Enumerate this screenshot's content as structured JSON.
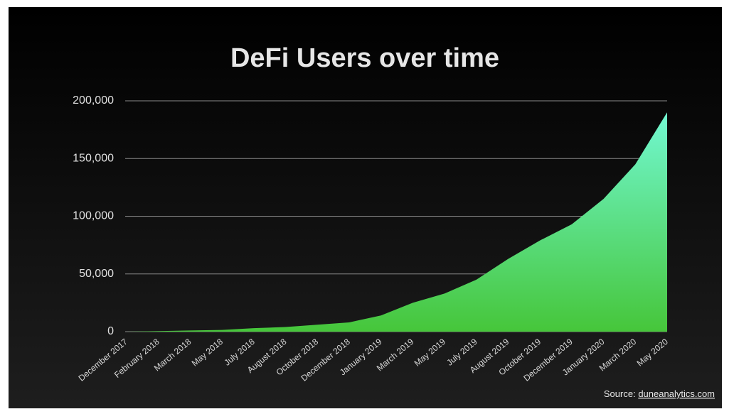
{
  "chart_data": {
    "type": "area",
    "title": "DeFi Users over time",
    "categories": [
      "December 2017",
      "February 2018",
      "March 2018",
      "May 2018",
      "July 2018",
      "August 2018",
      "October 2018",
      "December 2018",
      "January 2019",
      "March 2019",
      "May 2019",
      "July 2019",
      "August 2019",
      "October 2019",
      "December 2019",
      "January 2020",
      "March 2020",
      "May 2020"
    ],
    "values": [
      0,
      500,
      1000,
      1500,
      3000,
      4000,
      6000,
      8000,
      14000,
      25000,
      33000,
      45000,
      63000,
      79000,
      93000,
      115000,
      145000,
      190000
    ],
    "gradient": [
      "#72f8d2",
      "#46c63a"
    ],
    "ylim": [
      0,
      200000
    ],
    "yticks": [
      0,
      {
        "value": 50000,
        "label": "50,000"
      },
      {
        "value": 100000,
        "label": "100,000"
      },
      {
        "value": 150000,
        "label": "150,000"
      },
      {
        "value": 200000,
        "label": "200,000"
      }
    ],
    "grid": true,
    "source": "Source:",
    "source_link": "duneanalytics.com"
  }
}
